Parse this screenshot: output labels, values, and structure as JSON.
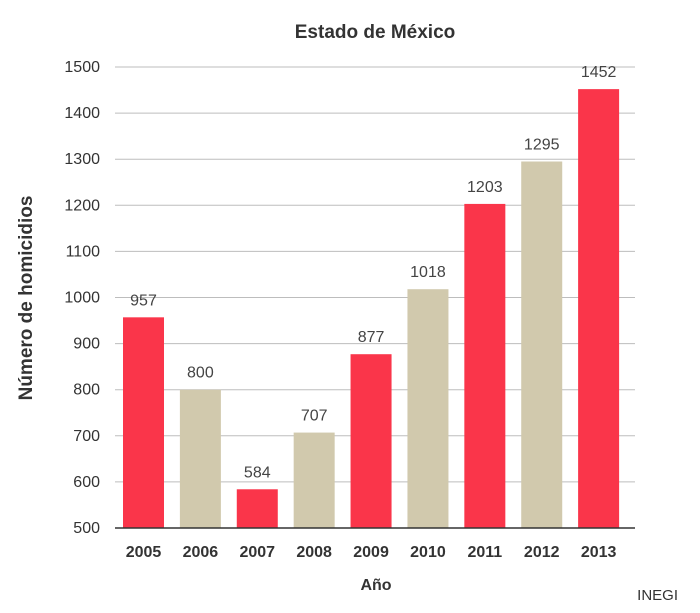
{
  "chart_data": {
    "type": "bar",
    "title": "Estado de México",
    "xlabel": "Año",
    "ylabel": "Número de homicidios",
    "categories": [
      "2005",
      "2006",
      "2007",
      "2008",
      "2009",
      "2010",
      "2011",
      "2012",
      "2013"
    ],
    "values": [
      957,
      800,
      584,
      707,
      877,
      1018,
      1203,
      1295,
      1452
    ],
    "bar_colors": [
      "#fa354a",
      "#d1c9ad",
      "#fa354a",
      "#d1c9ad",
      "#fa354a",
      "#d1c9ad",
      "#fa354a",
      "#d1c9ad",
      "#fa354a"
    ],
    "ylim": [
      500,
      1500
    ],
    "yticks": [
      500,
      600,
      700,
      800,
      900,
      1000,
      1100,
      1200,
      1300,
      1400,
      1500
    ],
    "grid": true,
    "legend": "none"
  },
  "source": "INEGI"
}
